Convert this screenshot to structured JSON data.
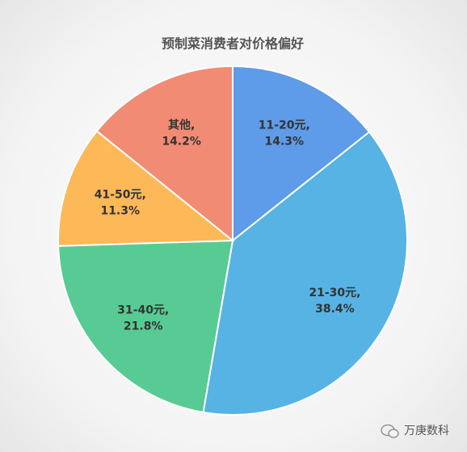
{
  "chart_data": {
    "type": "pie",
    "title": "预制菜消费者对价格偏好",
    "categories": [
      "11-20元,",
      "21-30元,",
      "31-40元,",
      "41-50元,",
      "其他,"
    ],
    "values": [
      14.3,
      38.4,
      21.8,
      11.3,
      14.2
    ],
    "value_labels": [
      "14.3%",
      "38.4%",
      "21.8%",
      "11.3%",
      "14.2%"
    ],
    "colors": [
      "#5e9be8",
      "#57b3e3",
      "#57cb93",
      "#fdb858",
      "#f28b73"
    ]
  },
  "watermark": "万庚数科"
}
